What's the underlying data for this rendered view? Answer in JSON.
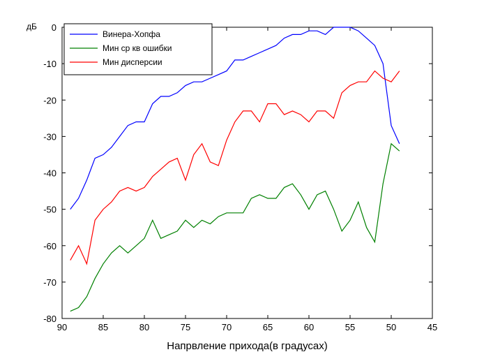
{
  "chart_data": {
    "type": "line",
    "title": "",
    "xlabel": "Напрвление прихода(в градусах)",
    "ylabel": "дБ",
    "xlim": [
      90,
      45
    ],
    "ylim": [
      -80,
      0
    ],
    "x_reversed": true,
    "xticks": [
      90,
      85,
      80,
      75,
      70,
      65,
      60,
      55,
      50,
      45
    ],
    "yticks": [
      -80,
      -70,
      -60,
      -50,
      -40,
      -30,
      -20,
      -10,
      0
    ],
    "grid": false,
    "legend_position": "top-left",
    "x": [
      89,
      88,
      87,
      86,
      85,
      84,
      83,
      82,
      81,
      80,
      79,
      78,
      77,
      76,
      75,
      74,
      73,
      72,
      71,
      70,
      69,
      68,
      67,
      66,
      65,
      64,
      63,
      62,
      61,
      60,
      59,
      58,
      57,
      56,
      55,
      54,
      53,
      52,
      51,
      50,
      49
    ],
    "series": [
      {
        "name": "Винера-Хопфа",
        "color": "#0000ff",
        "values": [
          -50,
          -47,
          -42,
          -36,
          -35,
          -33,
          -30,
          -27,
          -26,
          -26,
          -21,
          -19,
          -19,
          -18,
          -16,
          -15,
          -15,
          -14,
          -13,
          -12,
          -9,
          -9,
          -8,
          -7,
          -6,
          -5,
          -3,
          -2,
          -2,
          -1,
          -1,
          -2,
          0,
          0,
          0,
          -1,
          -3,
          -5,
          -10,
          -27,
          -32
        ]
      },
      {
        "name": "Мин ср кв ошибки",
        "color": "#008000",
        "values": [
          -78,
          -77,
          -74,
          -69,
          -65,
          -62,
          -60,
          -62,
          -60,
          -58,
          -53,
          -58,
          -57,
          -56,
          -53,
          -55,
          -53,
          -54,
          -52,
          -51,
          -51,
          -51,
          -47,
          -46,
          -47,
          -47,
          -44,
          -43,
          -46,
          -50,
          -46,
          -45,
          -50,
          -56,
          -53,
          -48,
          -55,
          -59,
          -43,
          -32,
          -34
        ]
      },
      {
        "name": "Мин дисперсии",
        "color": "#ff0000",
        "values": [
          -64,
          -60,
          -65,
          -53,
          -50,
          -48,
          -45,
          -44,
          -45,
          -44,
          -41,
          -39,
          -37,
          -36,
          -42,
          -35,
          -32,
          -37,
          -38,
          -31,
          -26,
          -23,
          -23,
          -26,
          -21,
          -21,
          -24,
          -23,
          -24,
          -26,
          -23,
          -23,
          -25,
          -18,
          -16,
          -15,
          -15,
          -12,
          -14,
          -15,
          -12
        ]
      }
    ]
  }
}
